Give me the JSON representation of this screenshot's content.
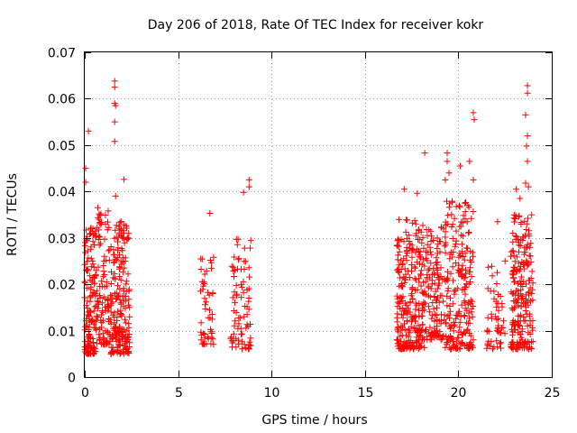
{
  "chart_data": {
    "type": "scatter",
    "title": "Day 206 of 2018, Rate Of TEC Index for receiver kokr",
    "xlabel": "GPS time / hours",
    "ylabel": "ROTI / TECUs",
    "xlim": [
      0,
      25
    ],
    "ylim": [
      0,
      0.07
    ],
    "grid": true,
    "marker": "+",
    "marker_color": "#ff0000",
    "x_ticks": [
      0,
      5,
      10,
      15,
      20,
      25
    ],
    "x_tick_labels": [
      "0",
      "5",
      "10",
      "15",
      "20",
      "25"
    ],
    "y_ticks": [
      0,
      0.01,
      0.02,
      0.03,
      0.04,
      0.05,
      0.06,
      0.07
    ],
    "y_tick_labels": [
      "0",
      "0.01",
      "0.02",
      "0.03",
      "0.04",
      "0.05",
      "0.06",
      "0.07"
    ],
    "series": [
      {
        "name": "ROTI",
        "clusters": [
          {
            "x_range": [
              0.0,
              0.6
            ],
            "y_range": [
              0.005,
              0.033
            ],
            "count": 140
          },
          {
            "x_range": [
              0.6,
              1.4
            ],
            "y_range": [
              0.007,
              0.036
            ],
            "count": 110
          },
          {
            "x_range": [
              1.4,
              2.4
            ],
            "y_range": [
              0.005,
              0.034
            ],
            "count": 200
          },
          {
            "x_range": [
              6.2,
              6.9
            ],
            "y_range": [
              0.007,
              0.026
            ],
            "count": 50
          },
          {
            "x_range": [
              7.8,
              8.9
            ],
            "y_range": [
              0.006,
              0.03
            ],
            "count": 80
          },
          {
            "x_range": [
              16.7,
              18.2
            ],
            "y_range": [
              0.006,
              0.034
            ],
            "count": 260
          },
          {
            "x_range": [
              18.2,
              19.2
            ],
            "y_range": [
              0.008,
              0.033
            ],
            "count": 120
          },
          {
            "x_range": [
              19.2,
              20.8
            ],
            "y_range": [
              0.006,
              0.038
            ],
            "count": 220
          },
          {
            "x_range": [
              21.5,
              22.5
            ],
            "y_range": [
              0.006,
              0.024
            ],
            "count": 50
          },
          {
            "x_range": [
              22.8,
              24.0
            ],
            "y_range": [
              0.006,
              0.035
            ],
            "count": 220
          }
        ],
        "highlights": [
          {
            "x": 0.05,
            "y": 0.045
          },
          {
            "x": 0.05,
            "y": 0.042
          },
          {
            "x": 0.2,
            "y": 0.053
          },
          {
            "x": 0.7,
            "y": 0.0365
          },
          {
            "x": 1.6,
            "y": 0.0638
          },
          {
            "x": 1.6,
            "y": 0.0625
          },
          {
            "x": 1.6,
            "y": 0.059
          },
          {
            "x": 1.65,
            "y": 0.0585
          },
          {
            "x": 1.6,
            "y": 0.055
          },
          {
            "x": 1.6,
            "y": 0.0508
          },
          {
            "x": 1.65,
            "y": 0.039
          },
          {
            "x": 2.1,
            "y": 0.0426
          },
          {
            "x": 6.7,
            "y": 0.0353
          },
          {
            "x": 8.8,
            "y": 0.0425
          },
          {
            "x": 8.8,
            "y": 0.041
          },
          {
            "x": 8.5,
            "y": 0.0398
          },
          {
            "x": 17.1,
            "y": 0.0405
          },
          {
            "x": 17.8,
            "y": 0.0396
          },
          {
            "x": 18.2,
            "y": 0.0483
          },
          {
            "x": 19.4,
            "y": 0.0483
          },
          {
            "x": 19.4,
            "y": 0.0465
          },
          {
            "x": 19.5,
            "y": 0.044
          },
          {
            "x": 19.3,
            "y": 0.0425
          },
          {
            "x": 20.1,
            "y": 0.0455
          },
          {
            "x": 20.6,
            "y": 0.0465
          },
          {
            "x": 20.8,
            "y": 0.057
          },
          {
            "x": 20.85,
            "y": 0.0555
          },
          {
            "x": 20.8,
            "y": 0.0425
          },
          {
            "x": 22.1,
            "y": 0.0335
          },
          {
            "x": 22.5,
            "y": 0.025
          },
          {
            "x": 23.7,
            "y": 0.0628
          },
          {
            "x": 23.7,
            "y": 0.0612
          },
          {
            "x": 23.6,
            "y": 0.0565
          },
          {
            "x": 23.7,
            "y": 0.052
          },
          {
            "x": 23.65,
            "y": 0.0498
          },
          {
            "x": 23.7,
            "y": 0.0465
          },
          {
            "x": 23.6,
            "y": 0.0418
          },
          {
            "x": 23.75,
            "y": 0.041
          },
          {
            "x": 23.1,
            "y": 0.0405
          },
          {
            "x": 23.3,
            "y": 0.0385
          }
        ]
      }
    ]
  }
}
